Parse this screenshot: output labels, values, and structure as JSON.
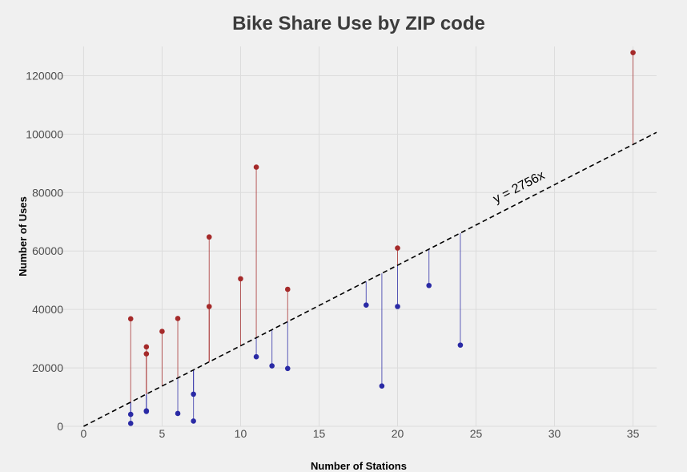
{
  "chart_data": {
    "type": "scatter",
    "title": "Bike Share Use by ZIP code",
    "xlabel": "Number of Stations",
    "ylabel": "Number of Uses",
    "xlim": [
      -1.5,
      36.5
    ],
    "ylim": [
      0,
      130000
    ],
    "xticks": [
      0,
      5,
      10,
      15,
      20,
      25,
      30,
      35
    ],
    "yticks": [
      0,
      20000,
      40000,
      60000,
      80000,
      100000,
      120000
    ],
    "grid": true,
    "trend_line": {
      "slope": 2756,
      "label": "y = 2756x",
      "style": "dashed"
    },
    "colors": {
      "above": "#a52a2a",
      "below": "#2a2aa5",
      "background": "#f0f0f0",
      "grid": "#dcdcdc"
    },
    "points": [
      {
        "x": 3,
        "y": 36800
      },
      {
        "x": 3,
        "y": 4100
      },
      {
        "x": 3,
        "y": 1000
      },
      {
        "x": 4,
        "y": 27200
      },
      {
        "x": 4,
        "y": 24800
      },
      {
        "x": 4,
        "y": 5300
      },
      {
        "x": 4,
        "y": 5100
      },
      {
        "x": 5,
        "y": 32500
      },
      {
        "x": 6,
        "y": 36900
      },
      {
        "x": 6,
        "y": 4400
      },
      {
        "x": 7,
        "y": 11000
      },
      {
        "x": 7,
        "y": 1800
      },
      {
        "x": 8,
        "y": 64800
      },
      {
        "x": 8,
        "y": 41000
      },
      {
        "x": 10,
        "y": 50500
      },
      {
        "x": 11,
        "y": 88700
      },
      {
        "x": 11,
        "y": 23800
      },
      {
        "x": 12,
        "y": 20700
      },
      {
        "x": 13,
        "y": 46900
      },
      {
        "x": 13,
        "y": 19800
      },
      {
        "x": 18,
        "y": 41500
      },
      {
        "x": 19,
        "y": 13800
      },
      {
        "x": 20,
        "y": 61000
      },
      {
        "x": 20,
        "y": 41000
      },
      {
        "x": 22,
        "y": 48200
      },
      {
        "x": 24,
        "y": 27800
      },
      {
        "x": 35,
        "y": 127900
      }
    ]
  }
}
